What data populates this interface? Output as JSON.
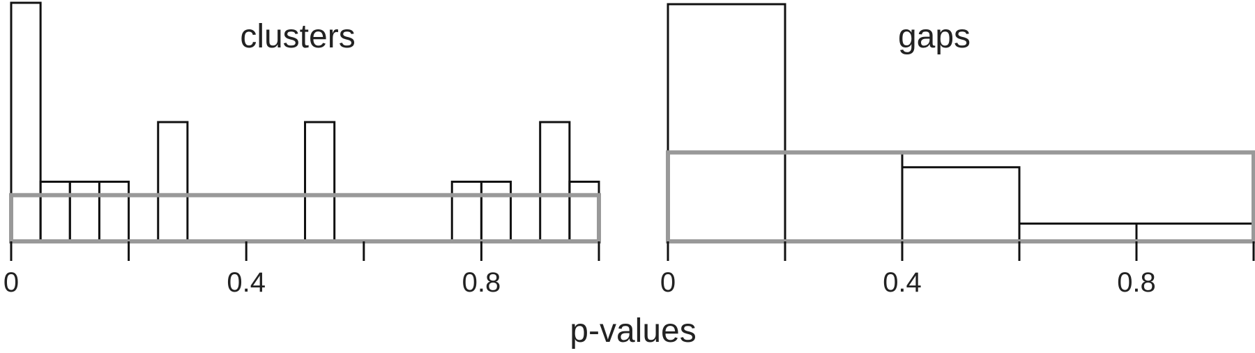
{
  "chart_data": {
    "xlabel": "p-values",
    "colors": {
      "bars": "#111111",
      "uniform_reference": "#999999",
      "text": "#222222"
    },
    "panels": [
      {
        "type": "bar",
        "title": "clusters",
        "xlim": [
          0,
          1
        ],
        "x_ticks": [
          0,
          0.2,
          0.4,
          0.6,
          0.8,
          1.0
        ],
        "tick_labels": [
          {
            "value": 0,
            "text": "0"
          },
          {
            "value": 0.4,
            "text": "0.4"
          },
          {
            "value": 0.8,
            "text": "0.8"
          }
        ],
        "bin_width": 0.05,
        "ylim": [
          0,
          8
        ],
        "bins": [
          {
            "start": 0.0,
            "count": 8
          },
          {
            "start": 0.05,
            "count": 2
          },
          {
            "start": 0.1,
            "count": 2
          },
          {
            "start": 0.15,
            "count": 2
          },
          {
            "start": 0.25,
            "count": 4
          },
          {
            "start": 0.5,
            "count": 4
          },
          {
            "start": 0.75,
            "count": 2
          },
          {
            "start": 0.8,
            "count": 2
          },
          {
            "start": 0.9,
            "count": 4
          },
          {
            "start": 0.95,
            "count": 2
          }
        ],
        "uniform_band": [
          0,
          1.55
        ]
      },
      {
        "type": "bar",
        "title": "gaps",
        "xlim": [
          0,
          1
        ],
        "x_ticks": [
          0,
          0.2,
          0.4,
          0.6,
          0.8,
          1.0
        ],
        "tick_labels": [
          {
            "value": 0,
            "text": "0"
          },
          {
            "value": 0.4,
            "text": "0.4"
          },
          {
            "value": 0.8,
            "text": "0.8"
          }
        ],
        "bin_width": 0.2,
        "ylim": [
          0,
          8
        ],
        "bins": [
          {
            "start": 0.0,
            "count": 8
          },
          {
            "start": 0.2,
            "count": 3
          },
          {
            "start": 0.4,
            "count": 2.5
          },
          {
            "start": 0.6,
            "count": 0.6
          },
          {
            "start": 0.8,
            "count": 0.6
          }
        ],
        "uniform_band": [
          0,
          3.0
        ]
      }
    ]
  }
}
